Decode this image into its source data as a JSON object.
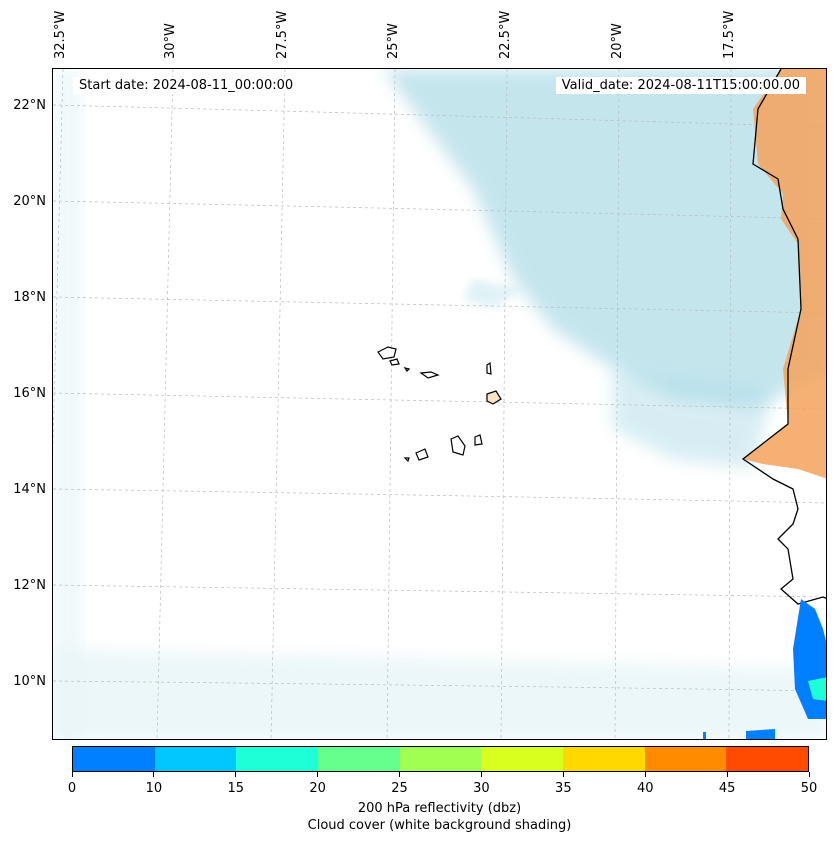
{
  "map": {
    "start_date": "Start date: 2024-08-11_00:00:00",
    "valid_date": "Valid_date: 2024-08-11T15:00:00.00",
    "lon_labels": [
      "32.5°W",
      "30°W",
      "27.5°W",
      "25°W",
      "22.5°W",
      "20°W",
      "17.5°W"
    ],
    "lat_labels": [
      "22°N",
      "20°N",
      "18°N",
      "16°N",
      "14°N",
      "12°N",
      "10°N"
    ],
    "colors": {
      "cloud": "#a9d9e5",
      "land": "#f4a25a",
      "coast": "#000000",
      "gridline": "#bbbbbb"
    }
  },
  "colorbar": {
    "ticks": [
      "0",
      "10",
      "15",
      "20",
      "25",
      "30",
      "35",
      "40",
      "45",
      "50"
    ],
    "colors": [
      "#0080ff",
      "#00c8ff",
      "#1effd8",
      "#64ff8c",
      "#a0ff50",
      "#d8ff1e",
      "#ffd800",
      "#ff8c00",
      "#ff4a00"
    ],
    "label_line1": "200 hPa reflectivity (dbz)",
    "label_line2": "Cloud cover (white background shading)"
  }
}
